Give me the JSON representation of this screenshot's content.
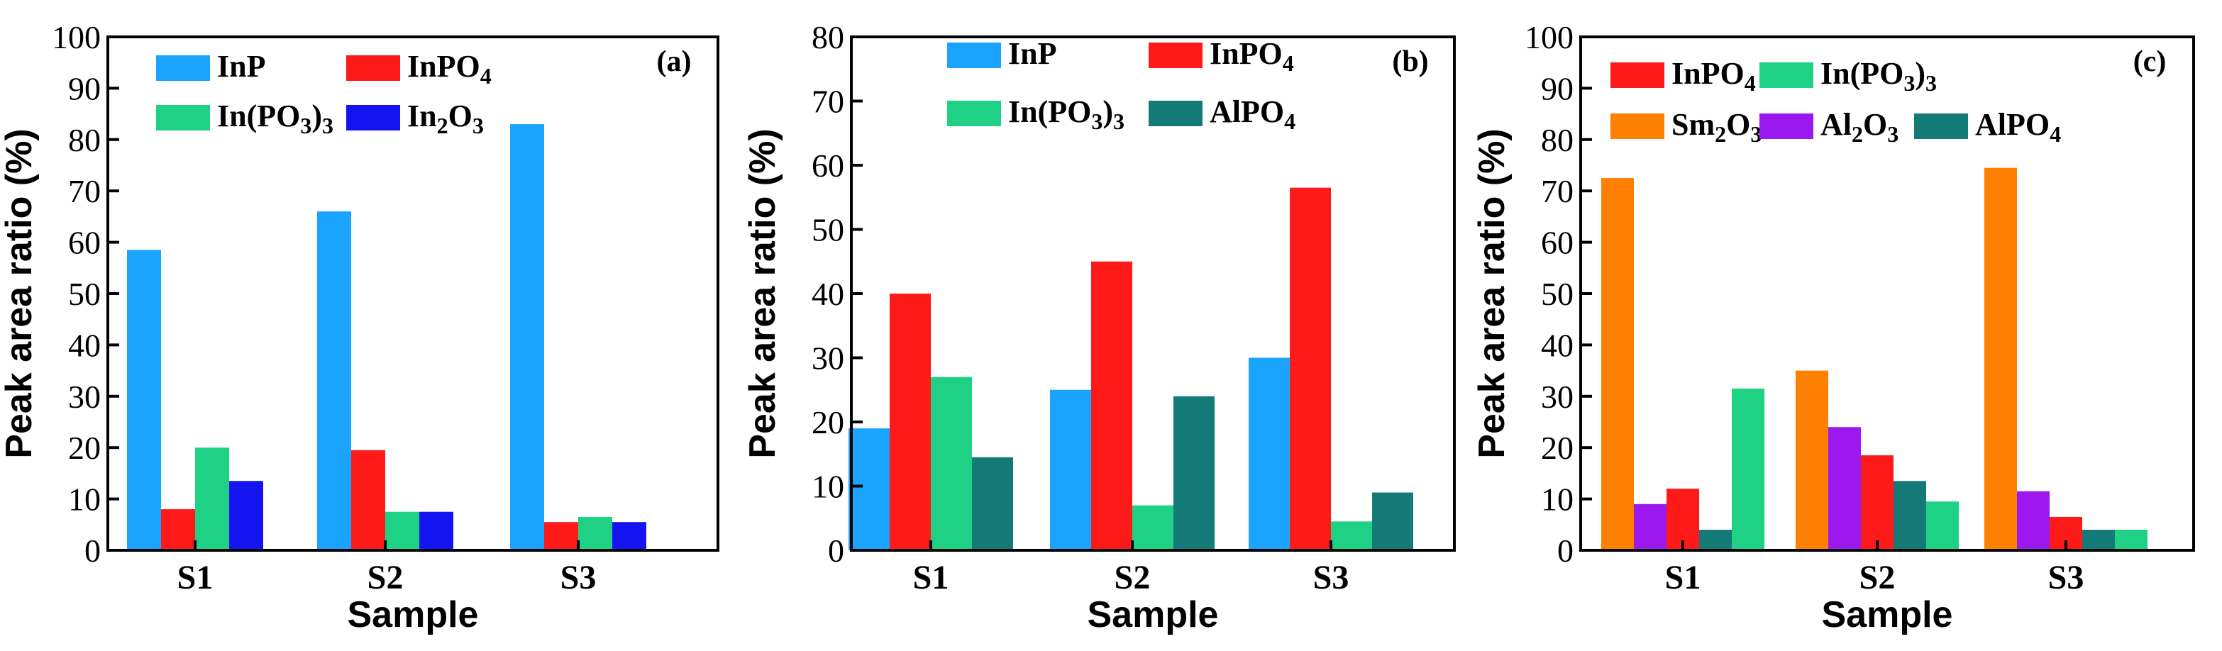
{
  "chart_data": [
    {
      "panel": "(a)",
      "type": "bar",
      "xlabel": "Sample",
      "ylabel": "Peak area ratio (%)",
      "ylim": [
        0,
        100
      ],
      "yticks": [
        "0",
        "10",
        "20",
        "30",
        "40",
        "50",
        "60",
        "70",
        "80",
        "90",
        "100"
      ],
      "categories": [
        "S1",
        "S2",
        "S3"
      ],
      "series": [
        {
          "name": "InP",
          "color": "#1aa3ff",
          "values": [
            58.5,
            66,
            83
          ]
        },
        {
          "name": "InPO4",
          "color": "#ff1a1a",
          "values": [
            8,
            19.5,
            5.5
          ]
        },
        {
          "name": "In(PO3)3",
          "color": "#1fd184",
          "values": [
            20,
            7.5,
            6.5
          ]
        },
        {
          "name": "In2O3",
          "color": "#1414f0",
          "values": [
            13.5,
            7.5,
            5.5
          ]
        }
      ]
    },
    {
      "panel": "(b)",
      "type": "bar",
      "xlabel": "Sample",
      "ylabel": "Peak area ratio (%)",
      "ylim": [
        0,
        80
      ],
      "yticks": [
        "0",
        "10",
        "20",
        "30",
        "40",
        "50",
        "60",
        "70",
        "80"
      ],
      "categories": [
        "S1",
        "S2",
        "S3"
      ],
      "series": [
        {
          "name": "InP",
          "color": "#1aa3ff",
          "values": [
            19,
            25,
            30
          ]
        },
        {
          "name": "InPO4",
          "color": "#ff1a1a",
          "values": [
            40,
            45,
            56.5
          ]
        },
        {
          "name": "In(PO3)3",
          "color": "#1fd184",
          "values": [
            27,
            7,
            4.5
          ]
        },
        {
          "name": "AlPO4",
          "color": "#137a78",
          "values": [
            14.5,
            24,
            9
          ]
        }
      ]
    },
    {
      "panel": "(c)",
      "type": "bar",
      "xlabel": "Sample",
      "ylabel": "Peak area ratio (%)",
      "ylim": [
        0,
        100
      ],
      "yticks": [
        "0",
        "10",
        "20",
        "30",
        "40",
        "50",
        "60",
        "70",
        "80",
        "90",
        "100"
      ],
      "categories": [
        "S1",
        "S2",
        "S3"
      ],
      "series": [
        {
          "name": "Sm2O3",
          "color": "#ff8000",
          "values": [
            72.5,
            35,
            74.5
          ]
        },
        {
          "name": "Al2O3",
          "color": "#9b19ef",
          "values": [
            9,
            24,
            11.5
          ]
        },
        {
          "name": "InPO4",
          "color": "#ff1a1a",
          "values": [
            12,
            18.5,
            6.5
          ]
        },
        {
          "name": "AlPO4",
          "color": "#137a78",
          "values": [
            4,
            13.5,
            4
          ]
        },
        {
          "name": "In(PO3)3",
          "color": "#1fd184",
          "values": [
            31.5,
            9.5,
            4
          ]
        }
      ]
    }
  ],
  "legends": [
    [
      {
        "color": "#1aa3ff",
        "label": "InP",
        "sub": ""
      },
      {
        "color": "#ff1a1a",
        "label": "InPO",
        "sub": "4"
      },
      {
        "color": "#1fd184",
        "label": "In(PO",
        "sub": "3",
        "after": ")",
        "sub2": "3"
      },
      {
        "color": "#1414f0",
        "label": "In",
        "sub": "2",
        "after": "O",
        "sub2": "3"
      }
    ],
    [
      {
        "color": "#1aa3ff",
        "label": "InP",
        "sub": ""
      },
      {
        "color": "#ff1a1a",
        "label": "InPO",
        "sub": "4"
      },
      {
        "color": "#1fd184",
        "label": "In(PO",
        "sub": "3",
        "after": ")",
        "sub2": "3"
      },
      {
        "color": "#137a78",
        "label": "AlPO",
        "sub": "4"
      }
    ],
    [
      {
        "color": "#ff1a1a",
        "label": "InPO",
        "sub": "4"
      },
      {
        "color": "#1fd184",
        "label": "In(PO",
        "sub": "3",
        "after": ")",
        "sub2": "3"
      },
      {
        "color": "#ff8000",
        "label": "Sm",
        "sub": "2",
        "after": "O",
        "sub2": "3"
      },
      {
        "color": "#9b19ef",
        "label": "Al",
        "sub": "2",
        "after": "O",
        "sub2": "3"
      },
      {
        "color": "#137a78",
        "label": "AlPO",
        "sub": "4"
      }
    ]
  ]
}
